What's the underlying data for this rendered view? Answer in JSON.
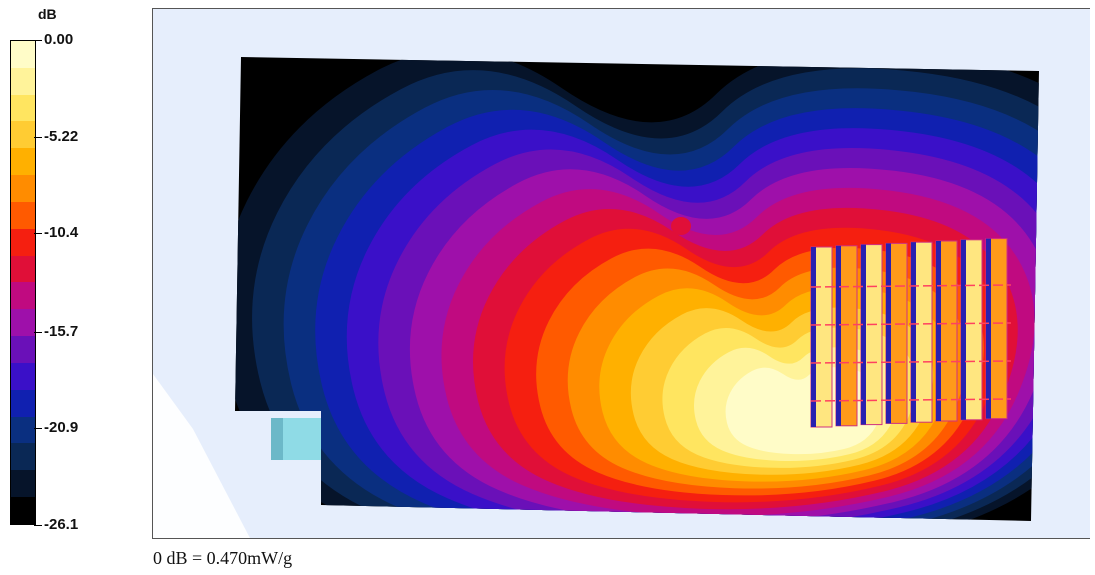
{
  "chart_data": {
    "type": "heatmap",
    "title": "",
    "colorbar": {
      "unit": "dB",
      "tick_labels": [
        "0.00",
        "-5.22",
        "-10.4",
        "-15.7",
        "-20.9",
        "-26.1"
      ],
      "tick_values": [
        0.0,
        -5.22,
        -10.4,
        -15.7,
        -20.9,
        -26.1
      ],
      "range": [
        -26.1,
        0.0
      ],
      "bands": [
        "#fffcc8",
        "#fff39a",
        "#ffe560",
        "#ffcc33",
        "#ffb000",
        "#ff8c00",
        "#ff5a00",
        "#f51f10",
        "#e00f38",
        "#c00a80",
        "#9e10aa",
        "#6a10b8",
        "#3a10c8",
        "#1020b0",
        "#0a2f80",
        "#0a2855",
        "#06142a",
        "#000000"
      ]
    },
    "reference_note": "0 dB = 0.470mW/g",
    "peak_region": "right-center, near the probe grid"
  },
  "colors": {
    "background": "#e6eefc",
    "phantom_edge": "#bfe6ee"
  }
}
